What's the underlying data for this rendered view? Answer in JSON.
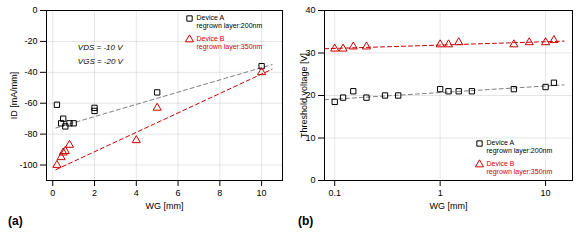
{
  "chart_data": [
    {
      "type": "scatter",
      "title": "(a)",
      "xlabel": "WG [mm]",
      "ylabel": "ID [mA/mm]",
      "xlim": [
        -0.3,
        11
      ],
      "ylim": [
        -110,
        0
      ],
      "xticks": [
        0,
        2,
        4,
        6,
        8,
        10
      ],
      "yticks": [
        -100,
        -80,
        -60,
        -40,
        -20,
        0
      ],
      "grid": true,
      "legend": "upper right",
      "annotations": [
        {
          "text": "VDS = -10 V",
          "x": 1.2,
          "y": -22
        },
        {
          "text": "VGS = -20 V",
          "x": 1.2,
          "y": -31
        }
      ],
      "series": [
        {
          "type": "line",
          "line_style": "dashed",
          "color": "#808080",
          "x": [
            0.15,
            10.5
          ],
          "values": [
            -76,
            -35
          ]
        },
        {
          "type": "line",
          "line_style": "dashed",
          "color": "#cc0000",
          "x": [
            0.15,
            10.5
          ],
          "values": [
            -103,
            -38
          ]
        },
        {
          "type": "scatter",
          "name": "Device A\nregrown layer:200nm",
          "color": "#000000",
          "marker": "square",
          "x": [
            0.2,
            0.4,
            0.5,
            0.6,
            0.8,
            1.0,
            2.0,
            2.0,
            5.0,
            10.0
          ],
          "values": [
            -61,
            -73,
            -70,
            -75,
            -73,
            -73,
            -65,
            -63,
            -53,
            -36
          ]
        },
        {
          "type": "scatter",
          "name": "Device B\nregrown layer:350nm",
          "color": "#cc0000",
          "marker": "triangle",
          "x": [
            0.2,
            0.4,
            0.5,
            0.6,
            0.8,
            4.0,
            5.0,
            10.0
          ],
          "values": [
            -100,
            -95,
            -92,
            -91,
            -87,
            -84,
            -63,
            -40
          ]
        }
      ]
    },
    {
      "type": "scatter",
      "title": "(b)",
      "xlabel": "WG [mm]",
      "ylabel": "Threshold voltage [V]",
      "log": "x",
      "xlim": [
        0.08,
        18
      ],
      "ylim": [
        0,
        40
      ],
      "xticks": [
        0.1,
        1,
        10
      ],
      "yticks": [
        0,
        10,
        20,
        30,
        40
      ],
      "grid": true,
      "legend": "lower right",
      "series": [
        {
          "type": "line",
          "line_style": "dashed",
          "color": "#808080",
          "x": [
            0.08,
            15.0
          ],
          "values": [
            19.0,
            22.5
          ]
        },
        {
          "type": "line",
          "line_style": "dashed",
          "color": "#cc0000",
          "x": [
            0.08,
            15.0
          ],
          "values": [
            31.0,
            32.8
          ]
        },
        {
          "type": "scatter",
          "name": "Device A\nregrown layer:200nm",
          "color": "#000000",
          "marker": "square",
          "x": [
            0.1,
            0.12,
            0.15,
            0.2,
            0.3,
            0.4,
            1.0,
            1.2,
            1.5,
            2.0,
            5.0,
            10.0,
            12.0
          ],
          "values": [
            18.5,
            19.5,
            21.0,
            19.5,
            20.0,
            20.0,
            21.5,
            21.0,
            21.0,
            21.0,
            21.5,
            22.0,
            23.0
          ]
        },
        {
          "type": "scatter",
          "name": "Device B\nregrown layer:350nm",
          "color": "#cc0000",
          "marker": "triangle",
          "x": [
            0.1,
            0.12,
            0.15,
            0.2,
            1.0,
            1.2,
            1.5,
            5.0,
            7.0,
            10.0,
            12.0
          ],
          "values": [
            31.0,
            31.0,
            31.5,
            31.5,
            32.0,
            32.0,
            32.5,
            32.0,
            32.5,
            32.5,
            33.0
          ]
        }
      ]
    }
  ]
}
